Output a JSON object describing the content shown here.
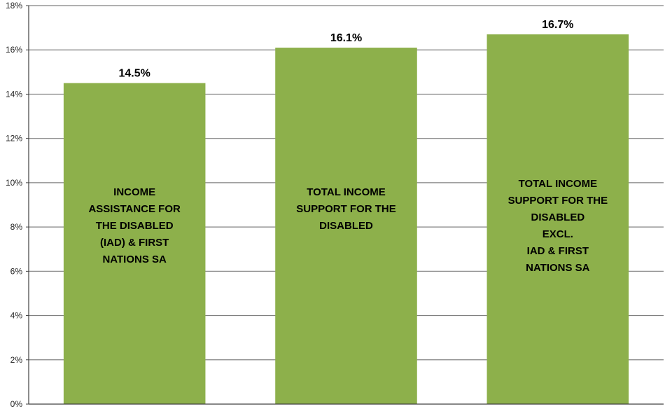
{
  "chart_data": {
    "type": "bar",
    "categories": [
      "INCOME ASSISTANCE FOR THE DISABLED (IAD) & FIRST NATIONS SA",
      "TOTAL INCOME SUPPORT FOR THE DISABLED",
      "TOTAL INCOME SUPPORT FOR THE DISABLED EXCL. IAD & FIRST NATIONS SA"
    ],
    "category_lines": [
      [
        "INCOME",
        "ASSISTANCE FOR",
        "THE DISABLED",
        "(IAD) & FIRST",
        "NATIONS SA"
      ],
      [
        "TOTAL INCOME",
        "SUPPORT FOR THE",
        "DISABLED"
      ],
      [
        "TOTAL INCOME",
        "SUPPORT FOR THE",
        "DISABLED",
        "EXCL.",
        "IAD & FIRST",
        "NATIONS SA"
      ]
    ],
    "values": [
      14.5,
      16.1,
      16.7
    ],
    "data_labels": [
      "14.5%",
      "16.1%",
      "16.7%"
    ],
    "y_ticks": [
      0,
      2,
      4,
      6,
      8,
      10,
      12,
      14,
      16,
      18
    ],
    "y_tick_labels": [
      "0%",
      "2%",
      "4%",
      "6%",
      "8%",
      "10%",
      "12%",
      "14%",
      "16%",
      "18%"
    ],
    "ylim": [
      0,
      18
    ],
    "grid": true,
    "legend": "none",
    "title": "",
    "xlabel": "",
    "ylabel": "",
    "colors": {
      "bar": "#8db04b",
      "grid": "#808080",
      "axis": "#404040"
    }
  }
}
